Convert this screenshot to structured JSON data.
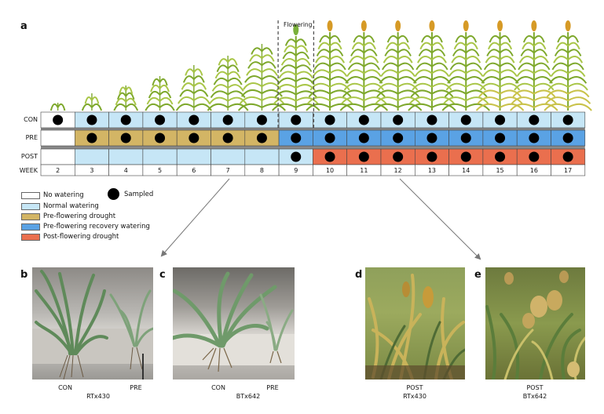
{
  "panel_a": {
    "letter": "a",
    "flowering_label": "Flowering",
    "row_labels": [
      "CON",
      "PRE",
      "POST"
    ],
    "week_label": "WEEK",
    "weeks": [
      "2",
      "3",
      "4",
      "5",
      "6",
      "7",
      "8",
      "9",
      "10",
      "11",
      "12",
      "13",
      "14",
      "15",
      "16",
      "17"
    ],
    "rows": {
      "CON": [
        "none",
        "normal",
        "normal",
        "normal",
        "normal",
        "normal",
        "normal",
        "normal",
        "normal",
        "normal",
        "normal",
        "normal",
        "normal",
        "normal",
        "normal",
        "normal"
      ],
      "PRE": [
        "none",
        "pre",
        "pre",
        "pre",
        "pre",
        "pre",
        "pre",
        "recovery",
        "recovery",
        "recovery",
        "recovery",
        "recovery",
        "recovery",
        "recovery",
        "recovery",
        "recovery"
      ],
      "POST": [
        "none",
        "normal",
        "normal",
        "normal",
        "normal",
        "normal",
        "normal",
        "normal",
        "post",
        "post",
        "post",
        "post",
        "post",
        "post",
        "post",
        "post"
      ]
    },
    "sampled": {
      "CON": [
        true,
        true,
        true,
        true,
        true,
        true,
        true,
        true,
        true,
        true,
        true,
        true,
        true,
        true,
        true,
        true
      ],
      "PRE": [
        false,
        true,
        true,
        true,
        true,
        true,
        true,
        true,
        true,
        true,
        true,
        true,
        true,
        true,
        true,
        true
      ],
      "POST": [
        false,
        false,
        false,
        false,
        false,
        false,
        false,
        true,
        true,
        true,
        true,
        true,
        true,
        true,
        true,
        true
      ]
    },
    "colors": {
      "none": "#ffffff",
      "normal": "#c6e6f6",
      "pre": "#d3b565",
      "recovery": "#5aa2e4",
      "post": "#ea6f4e"
    }
  },
  "legend": {
    "items": [
      {
        "key": "none",
        "label": "No watering"
      },
      {
        "key": "normal",
        "label": "Normal watering"
      },
      {
        "key": "pre",
        "label": "Pre-flowering drought"
      },
      {
        "key": "recovery",
        "label": "Pre-flowering recovery watering"
      },
      {
        "key": "post",
        "label": "Post-flowering drought"
      }
    ],
    "sampled_label": "Sampled"
  },
  "panels": {
    "b": {
      "letter": "b",
      "left_label": "CON",
      "right_label": "PRE",
      "genotype": "RTx430"
    },
    "c": {
      "letter": "c",
      "left_label": "CON",
      "right_label": "PRE",
      "genotype": "BTx642"
    },
    "d": {
      "letter": "d",
      "label": "POST",
      "genotype": "RTx430"
    },
    "e": {
      "letter": "e",
      "label": "POST",
      "genotype": "BTx642"
    }
  }
}
